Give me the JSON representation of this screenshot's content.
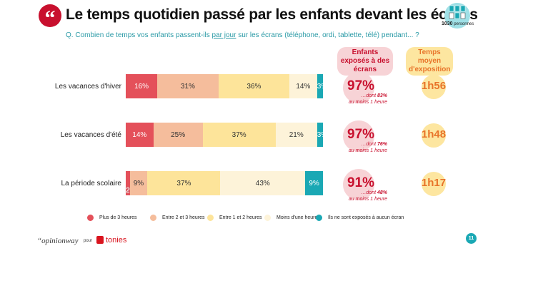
{
  "header": {
    "title": "Le temps quotidien passé par les enfants devant les écrans",
    "sample_count": "1030",
    "sample_label": "personnes",
    "question_pre": "Q. Combien de temps vos enfants passent-ils ",
    "question_underlined": "par jour",
    "question_post": " sur les écrans (téléphone, ordi, tablette, télé) pendant... ?"
  },
  "columns": {
    "exposed": "Enfants exposés à des écrans",
    "avg_time": "Temps moyen d'exposition"
  },
  "chart_data": {
    "type": "bar",
    "orientation": "horizontal",
    "stacked": true,
    "xlim": [
      0,
      100
    ],
    "categories": [
      "Les vacances d'hiver",
      "Les vacances d'été",
      "La période scolaire"
    ],
    "series": [
      {
        "name": "Plus de 3 heures",
        "color": "#e4505a",
        "values": [
          16,
          14,
          2
        ]
      },
      {
        "name": "Entre 2 et 3 heures",
        "color": "#f5bd9c",
        "values": [
          31,
          25,
          9
        ]
      },
      {
        "name": "Entre 1 et 2 heures",
        "color": "#fde49a",
        "values": [
          36,
          37,
          37
        ]
      },
      {
        "name": "Moins d'une heure",
        "color": "#fdf3d9",
        "values": [
          14,
          21,
          43
        ]
      },
      {
        "name": "Ils ne sont exposés à aucun écran",
        "color": "#1aa8b4",
        "values": [
          3,
          3,
          9
        ]
      }
    ],
    "legend": "bottom"
  },
  "side": [
    {
      "exposed": "97%",
      "dont": "…dont ",
      "dont_val": "83%",
      "dont_post": "au moins 1 heure",
      "time": "1h56"
    },
    {
      "exposed": "97%",
      "dont": "…dont ",
      "dont_val": "76%",
      "dont_post": "au moins 1 heure",
      "time": "1h48"
    },
    {
      "exposed": "91%",
      "dont": "…dont ",
      "dont_val": "48%",
      "dont_post": "au moins 1 heure",
      "time": "1h17"
    }
  ],
  "footer": {
    "brand": "“opinionway",
    "pour": "pour",
    "partner": "tonies",
    "page": "11"
  }
}
